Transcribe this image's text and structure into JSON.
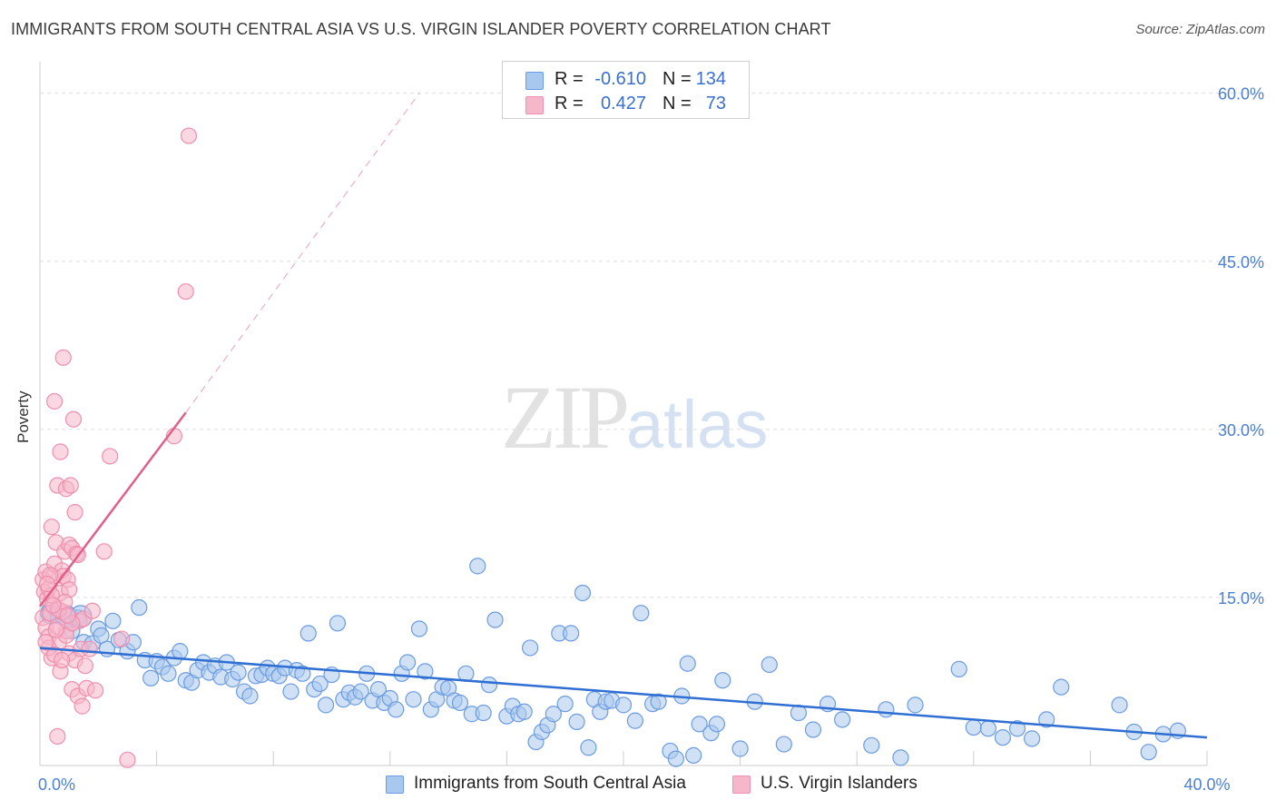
{
  "title": "IMMIGRANTS FROM SOUTH CENTRAL ASIA VS U.S. VIRGIN ISLANDER POVERTY CORRELATION CHART",
  "source": "Source: ZipAtlas.com",
  "watermark": {
    "zip": "ZIP",
    "atlas": "atlas"
  },
  "legend": {
    "rows": [
      {
        "r_label": "R =",
        "r_value": "-0.610",
        "n_label": "N =",
        "n_value": "134"
      },
      {
        "r_label": "R =",
        "r_value": "0.427",
        "n_label": "N =",
        "n_value": "73"
      }
    ]
  },
  "bottom_legend": {
    "series1": "Immigrants from South Central Asia",
    "series2": "U.S. Virgin Islanders"
  },
  "colors": {
    "blue_fill": "#a9c8ef",
    "blue_stroke": "#6b9be0",
    "blue_line": "#2f6fd3",
    "pink_fill": "#f7b7cb",
    "pink_stroke": "#ee8fae",
    "pink_line": "#e0608a",
    "tick_text": "#4a7fd4",
    "grid": "#dddddd"
  },
  "chart_data": {
    "type": "scatter",
    "ylabel": "Poverty",
    "xlabel": "",
    "xlim": [
      0,
      40
    ],
    "ylim": [
      0,
      62
    ],
    "x_tick_labels": [
      {
        "v": 0,
        "label": "0.0%"
      },
      {
        "v": 40,
        "label": "40.0%"
      }
    ],
    "y_tick_labels": [
      {
        "v": 15,
        "label": "15.0%"
      },
      {
        "v": 30,
        "label": "30.0%"
      },
      {
        "v": 45,
        "label": "45.0%"
      },
      {
        "v": 60,
        "label": "60.0%"
      }
    ],
    "grid": true,
    "series": [
      {
        "name": "Immigrants from South Central Asia",
        "color": "blue",
        "trend": {
          "x0": 0,
          "y0": 10.5,
          "x1": 40,
          "y1": 2.5
        },
        "points": [
          [
            0.3,
            13.6
          ],
          [
            0.6,
            13.4
          ],
          [
            0.9,
            13.5
          ],
          [
            1.1,
            12.0
          ],
          [
            1.3,
            13.2
          ],
          [
            1.5,
            11.0
          ],
          [
            1.8,
            10.9
          ],
          [
            2.0,
            12.2
          ],
          [
            2.1,
            11.6
          ],
          [
            2.3,
            10.4
          ],
          [
            2.5,
            12.9
          ],
          [
            2.7,
            11.2
          ],
          [
            3.0,
            10.2
          ],
          [
            3.2,
            11.0
          ],
          [
            3.4,
            14.1
          ],
          [
            3.6,
            9.4
          ],
          [
            3.8,
            7.8
          ],
          [
            4.0,
            9.3
          ],
          [
            4.2,
            8.8
          ],
          [
            4.4,
            8.2
          ],
          [
            4.6,
            9.6
          ],
          [
            4.8,
            10.2
          ],
          [
            5.0,
            7.6
          ],
          [
            5.2,
            7.4
          ],
          [
            5.4,
            8.5
          ],
          [
            5.6,
            9.2
          ],
          [
            5.8,
            8.3
          ],
          [
            6.0,
            8.9
          ],
          [
            6.2,
            7.9
          ],
          [
            6.4,
            9.2
          ],
          [
            6.6,
            7.7
          ],
          [
            6.8,
            8.3
          ],
          [
            7.0,
            6.6
          ],
          [
            7.2,
            6.2
          ],
          [
            7.4,
            8.0
          ],
          [
            7.6,
            8.1
          ],
          [
            7.8,
            8.7
          ],
          [
            8.0,
            8.2
          ],
          [
            8.2,
            8.0
          ],
          [
            8.4,
            8.7
          ],
          [
            8.6,
            6.6
          ],
          [
            8.8,
            8.5
          ],
          [
            9.0,
            8.2
          ],
          [
            9.2,
            11.8
          ],
          [
            9.4,
            6.8
          ],
          [
            9.6,
            7.3
          ],
          [
            9.8,
            5.4
          ],
          [
            10.0,
            8.1
          ],
          [
            10.2,
            12.7
          ],
          [
            10.4,
            5.9
          ],
          [
            10.6,
            6.5
          ],
          [
            10.8,
            6.1
          ],
          [
            11.0,
            6.6
          ],
          [
            11.2,
            8.2
          ],
          [
            11.4,
            5.8
          ],
          [
            11.6,
            6.8
          ],
          [
            11.8,
            5.6
          ],
          [
            12.0,
            6.0
          ],
          [
            12.2,
            5.0
          ],
          [
            12.4,
            8.2
          ],
          [
            12.6,
            9.2
          ],
          [
            12.8,
            5.9
          ],
          [
            13.0,
            12.2
          ],
          [
            13.2,
            8.4
          ],
          [
            13.4,
            5.0
          ],
          [
            13.6,
            5.9
          ],
          [
            13.8,
            7.0
          ],
          [
            14.0,
            6.9
          ],
          [
            14.2,
            5.8
          ],
          [
            14.4,
            5.6
          ],
          [
            14.6,
            8.2
          ],
          [
            14.8,
            4.6
          ],
          [
            15.0,
            17.8
          ],
          [
            15.2,
            4.7
          ],
          [
            15.4,
            7.2
          ],
          [
            15.6,
            13.0
          ],
          [
            16.0,
            4.4
          ],
          [
            16.2,
            5.3
          ],
          [
            16.4,
            4.6
          ],
          [
            16.6,
            4.8
          ],
          [
            16.8,
            10.5
          ],
          [
            17.0,
            2.1
          ],
          [
            17.2,
            3.0
          ],
          [
            17.4,
            3.6
          ],
          [
            17.6,
            4.6
          ],
          [
            17.8,
            11.8
          ],
          [
            18.0,
            5.5
          ],
          [
            18.2,
            11.8
          ],
          [
            18.4,
            3.9
          ],
          [
            18.6,
            15.4
          ],
          [
            18.8,
            1.6
          ],
          [
            19.0,
            5.9
          ],
          [
            19.2,
            4.8
          ],
          [
            19.4,
            5.7
          ],
          [
            19.6,
            5.8
          ],
          [
            20.0,
            5.4
          ],
          [
            20.4,
            4.0
          ],
          [
            20.6,
            13.6
          ],
          [
            21.0,
            5.5
          ],
          [
            21.2,
            5.7
          ],
          [
            21.6,
            1.3
          ],
          [
            21.8,
            0.6
          ],
          [
            22.0,
            6.2
          ],
          [
            22.2,
            9.1
          ],
          [
            22.4,
            0.9
          ],
          [
            22.6,
            3.7
          ],
          [
            23.0,
            2.9
          ],
          [
            23.2,
            3.7
          ],
          [
            23.4,
            7.6
          ],
          [
            24.0,
            1.5
          ],
          [
            24.5,
            5.7
          ],
          [
            25.0,
            9.0
          ],
          [
            25.5,
            1.9
          ],
          [
            26.0,
            4.7
          ],
          [
            26.5,
            3.2
          ],
          [
            27.0,
            5.5
          ],
          [
            27.5,
            4.1
          ],
          [
            28.5,
            1.8
          ],
          [
            29.0,
            5.0
          ],
          [
            29.5,
            0.7
          ],
          [
            30.0,
            5.4
          ],
          [
            31.5,
            8.6
          ],
          [
            32.0,
            3.4
          ],
          [
            32.5,
            3.3
          ],
          [
            33.0,
            2.5
          ],
          [
            33.5,
            3.3
          ],
          [
            34.0,
            2.4
          ],
          [
            34.5,
            4.1
          ],
          [
            35.0,
            7.0
          ],
          [
            37.0,
            5.4
          ],
          [
            37.5,
            3.0
          ],
          [
            38.0,
            1.2
          ],
          [
            38.5,
            2.8
          ],
          [
            39.0,
            3.1
          ]
        ],
        "large_points": [
          [
            0.4,
            13.6
          ],
          [
            0.9,
            13.3
          ],
          [
            1.4,
            13.3
          ]
        ]
      },
      {
        "name": "U.S. Virgin Islanders",
        "color": "pink",
        "trend": {
          "x0": 0,
          "y0": 14.2,
          "x1": 5.0,
          "y1": 31.5,
          "dashed_to": {
            "x": 13.0,
            "y": 60.0
          }
        },
        "points": [
          [
            0.1,
            13.2
          ],
          [
            0.1,
            16.6
          ],
          [
            0.15,
            15.5
          ],
          [
            0.2,
            12.3
          ],
          [
            0.2,
            17.3
          ],
          [
            0.25,
            14.9
          ],
          [
            0.3,
            15.8
          ],
          [
            0.3,
            11.5
          ],
          [
            0.35,
            13.6
          ],
          [
            0.4,
            21.3
          ],
          [
            0.4,
            9.6
          ],
          [
            0.45,
            16.9
          ],
          [
            0.5,
            18.0
          ],
          [
            0.5,
            32.5
          ],
          [
            0.55,
            19.9
          ],
          [
            0.6,
            14.0
          ],
          [
            0.6,
            25.0
          ],
          [
            0.65,
            11.0
          ],
          [
            0.7,
            28.0
          ],
          [
            0.7,
            8.4
          ],
          [
            0.75,
            17.4
          ],
          [
            0.8,
            36.4
          ],
          [
            0.8,
            16.9
          ],
          [
            0.85,
            19.1
          ],
          [
            0.9,
            12.0
          ],
          [
            0.9,
            24.7
          ],
          [
            0.95,
            16.6
          ],
          [
            1.0,
            19.7
          ],
          [
            1.0,
            10.0
          ],
          [
            1.05,
            25.0
          ],
          [
            1.1,
            19.4
          ],
          [
            1.1,
            6.8
          ],
          [
            1.15,
            30.9
          ],
          [
            1.2,
            22.6
          ],
          [
            1.2,
            9.4
          ],
          [
            1.25,
            18.9
          ],
          [
            1.3,
            6.2
          ],
          [
            1.35,
            12.9
          ],
          [
            1.4,
            10.4
          ],
          [
            1.45,
            5.3
          ],
          [
            1.5,
            13.1
          ],
          [
            1.55,
            8.9
          ],
          [
            1.6,
            6.9
          ],
          [
            1.7,
            10.4
          ],
          [
            1.8,
            13.8
          ],
          [
            1.9,
            6.7
          ],
          [
            2.2,
            19.1
          ],
          [
            2.4,
            27.6
          ],
          [
            2.8,
            11.3
          ],
          [
            3.0,
            0.5
          ],
          [
            0.3,
            10.5
          ],
          [
            0.5,
            9.9
          ],
          [
            0.6,
            12.4
          ],
          [
            0.7,
            15.4
          ],
          [
            0.8,
            13.7
          ],
          [
            0.9,
            11.6
          ],
          [
            1.0,
            15.7
          ],
          [
            1.1,
            12.7
          ],
          [
            0.2,
            11.0
          ],
          [
            0.4,
            15.2
          ],
          [
            0.35,
            17.0
          ],
          [
            0.55,
            12.1
          ],
          [
            0.65,
            13.9
          ],
          [
            0.75,
            9.4
          ],
          [
            0.85,
            14.6
          ],
          [
            0.95,
            13.4
          ],
          [
            0.25,
            16.2
          ],
          [
            0.45,
            14.3
          ],
          [
            4.6,
            29.4
          ],
          [
            5.0,
            42.3
          ],
          [
            5.1,
            56.2
          ],
          [
            0.6,
            2.6
          ],
          [
            1.3,
            18.8
          ]
        ]
      }
    ]
  }
}
